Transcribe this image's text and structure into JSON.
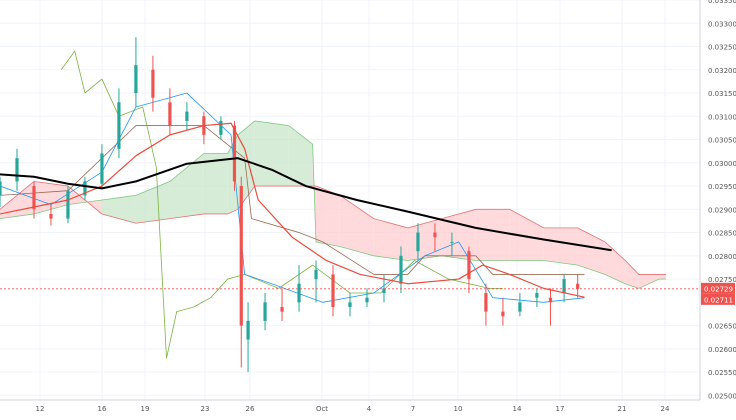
{
  "chart_data": {
    "type": "candlestick",
    "colors": {
      "up": "#26a69a",
      "down": "#ef5350",
      "ma200": "#000000",
      "ema": "#e84c3d",
      "tenkan": "#2196f3",
      "kijun": "#9c6b55",
      "chikou": "#7cb342",
      "cloud_bull": "#c8e6c9",
      "cloud_bear": "#ffcdd2",
      "grid": "#f0f3fa",
      "price_marker": "#ef5350",
      "axis_text": "#555555"
    },
    "ylim": [
      0.0249,
      0.0335
    ],
    "y_ticks": [
      "0.03350",
      "0.03300",
      "0.03250",
      "0.03200",
      "0.03150",
      "0.03100",
      "0.03050",
      "0.03000",
      "0.02950",
      "0.02900",
      "0.02850",
      "0.02800",
      "0.02750",
      "0.02650",
      "0.02600",
      "0.02550",
      "0.02500"
    ],
    "x_ticks": [
      "12",
      "16",
      "19",
      "23",
      "26",
      "Oct",
      "4",
      "7",
      "10",
      "14",
      "17",
      "21",
      "24"
    ],
    "last_price_label": "0.02729",
    "last_price": 0.02729,
    "ema_value_label": "0.02711",
    "ema_value": 0.02711,
    "series": {
      "ma200": [
        [
          0,
          0.02975
        ],
        [
          10,
          0.0297
        ],
        [
          20,
          0.02955
        ],
        [
          30,
          0.02945
        ],
        [
          40,
          0.0296
        ],
        [
          55,
          0.02998
        ],
        [
          70,
          0.0301
        ],
        [
          80,
          0.02985
        ],
        [
          90,
          0.0295
        ],
        [
          105,
          0.0292
        ],
        [
          120,
          0.02895
        ],
        [
          140,
          0.0286
        ],
        [
          160,
          0.02835
        ],
        [
          180,
          0.02812
        ]
      ],
      "ema": [
        [
          0,
          0.0289
        ],
        [
          10,
          0.02905
        ],
        [
          20,
          0.0292
        ],
        [
          30,
          0.0295
        ],
        [
          40,
          0.03015
        ],
        [
          50,
          0.0306
        ],
        [
          60,
          0.0308
        ],
        [
          68,
          0.03085
        ],
        [
          72,
          0.0303
        ],
        [
          76,
          0.0292
        ],
        [
          86,
          0.0284
        ],
        [
          96,
          0.0279
        ],
        [
          106,
          0.0276
        ],
        [
          120,
          0.0274
        ],
        [
          135,
          0.0275
        ],
        [
          142,
          0.0278
        ],
        [
          150,
          0.0276
        ],
        [
          160,
          0.0273
        ],
        [
          172,
          0.02711
        ]
      ],
      "candles": [
        [
          0,
          0.0293,
          0.0296,
          0.02905,
          0.0297
        ],
        [
          5,
          0.0296,
          0.0301,
          0.0294,
          0.0303
        ],
        [
          10,
          0.0295,
          0.029,
          0.0288,
          0.0296
        ],
        [
          15,
          0.0289,
          0.0288,
          0.02865,
          0.0291
        ],
        [
          20,
          0.0288,
          0.0294,
          0.0287,
          0.0295
        ],
        [
          25,
          0.0293,
          0.0296,
          0.0292,
          0.0297
        ],
        [
          30,
          0.02955,
          0.0302,
          0.02945,
          0.0304
        ],
        [
          35,
          0.0303,
          0.0313,
          0.0301,
          0.0316
        ],
        [
          40,
          0.0315,
          0.0321,
          0.0312,
          0.0327
        ],
        [
          45,
          0.032,
          0.0314,
          0.0311,
          0.0323
        ],
        [
          50,
          0.0313,
          0.0308,
          0.0306,
          0.0316
        ],
        [
          55,
          0.0309,
          0.0311,
          0.0307,
          0.0313
        ],
        [
          60,
          0.031,
          0.0306,
          0.0304,
          0.0311
        ],
        [
          65,
          0.0306,
          0.0309,
          0.0305,
          0.031
        ],
        [
          69,
          0.0308,
          0.0296,
          0.0294,
          0.0309
        ],
        [
          71,
          0.0295,
          0.0265,
          0.0256,
          0.0297
        ],
        [
          73,
          0.0262,
          0.0266,
          0.0255,
          0.027
        ],
        [
          78,
          0.0266,
          0.027,
          0.0264,
          0.0272
        ],
        [
          83,
          0.0269,
          0.0268,
          0.0266,
          0.0273
        ],
        [
          88,
          0.027,
          0.0274,
          0.0268,
          0.0278
        ],
        [
          93,
          0.0275,
          0.0277,
          0.027,
          0.0279
        ],
        [
          98,
          0.0276,
          0.0269,
          0.0267,
          0.0278
        ],
        [
          103,
          0.0269,
          0.027,
          0.0267,
          0.0272
        ],
        [
          108,
          0.027,
          0.0271,
          0.0269,
          0.0273
        ],
        [
          113,
          0.0272,
          0.0273,
          0.027,
          0.0276
        ],
        [
          118,
          0.0274,
          0.028,
          0.0272,
          0.0282
        ],
        [
          123,
          0.0281,
          0.0285,
          0.0279,
          0.0287
        ],
        [
          128,
          0.0285,
          0.0284,
          0.0281,
          0.0287
        ],
        [
          133,
          0.0283,
          0.0283,
          0.028,
          0.0285
        ],
        [
          138,
          0.0281,
          0.0275,
          0.0272,
          0.0282
        ],
        [
          143,
          0.0272,
          0.0268,
          0.0265,
          0.0274
        ],
        [
          148,
          0.0268,
          0.0267,
          0.0265,
          0.0271
        ],
        [
          153,
          0.0268,
          0.027,
          0.0267,
          0.0272
        ],
        [
          158,
          0.0271,
          0.0272,
          0.0269,
          0.0273
        ],
        [
          162,
          0.0271,
          0.027,
          0.0265,
          0.0273
        ],
        [
          166,
          0.0272,
          0.0275,
          0.027,
          0.0276
        ],
        [
          170,
          0.0274,
          0.02729,
          0.0271,
          0.0276
        ]
      ],
      "tenkan": [
        [
          0,
          0.0295
        ],
        [
          15,
          0.0291
        ],
        [
          30,
          0.0298
        ],
        [
          40,
          0.0312
        ],
        [
          55,
          0.0315
        ],
        [
          68,
          0.0306
        ],
        [
          72,
          0.0276
        ],
        [
          80,
          0.0274
        ],
        [
          95,
          0.027
        ],
        [
          110,
          0.0272
        ],
        [
          125,
          0.028
        ],
        [
          135,
          0.0283
        ],
        [
          145,
          0.0271
        ],
        [
          160,
          0.027
        ],
        [
          172,
          0.0271
        ]
      ],
      "kijun": [
        [
          0,
          0.0293
        ],
        [
          20,
          0.0294
        ],
        [
          40,
          0.0308
        ],
        [
          60,
          0.0308
        ],
        [
          72,
          0.0301
        ],
        [
          74,
          0.0288
        ],
        [
          88,
          0.0285
        ],
        [
          95,
          0.0283
        ],
        [
          110,
          0.0276
        ],
        [
          120,
          0.0276
        ],
        [
          125,
          0.028
        ],
        [
          140,
          0.028
        ],
        [
          145,
          0.0276
        ],
        [
          172,
          0.0276
        ]
      ],
      "chikou": [
        [
          18,
          0.032
        ],
        [
          22,
          0.0324
        ],
        [
          25,
          0.0315
        ],
        [
          30,
          0.0318
        ],
        [
          35,
          0.031
        ],
        [
          42,
          0.0312
        ],
        [
          46,
          0.0299
        ],
        [
          49,
          0.0258
        ],
        [
          52,
          0.0268
        ],
        [
          57,
          0.0269
        ],
        [
          62,
          0.0271
        ],
        [
          67,
          0.0275
        ],
        [
          72,
          0.0276
        ],
        [
          82,
          0.0273
        ],
        [
          92,
          0.0278
        ],
        [
          103,
          0.0272
        ],
        [
          112,
          0.0272
        ],
        [
          122,
          0.0279
        ],
        [
          132,
          0.0275
        ],
        [
          144,
          0.0273
        ],
        [
          148,
          0.0273
        ]
      ],
      "cloud": [
        [
          0,
          0.0288,
          0.029
        ],
        [
          10,
          0.0289,
          0.0296
        ],
        [
          20,
          0.0291,
          0.0295
        ],
        [
          30,
          0.0292,
          0.0289
        ],
        [
          40,
          0.0293,
          0.0287
        ],
        [
          50,
          0.0296,
          0.0288
        ],
        [
          60,
          0.0302,
          0.0289
        ],
        [
          67,
          0.0302,
          0.0289
        ],
        [
          70,
          0.0306,
          0.029
        ],
        [
          75,
          0.0309,
          0.0295
        ],
        [
          85,
          0.0308,
          0.0295
        ],
        [
          92,
          0.0304,
          0.0295
        ],
        [
          93,
          0.0283,
          0.0295
        ],
        [
          100,
          0.0282,
          0.0293
        ],
        [
          110,
          0.028,
          0.0288
        ],
        [
          120,
          0.0279,
          0.0286
        ],
        [
          130,
          0.028,
          0.0288
        ],
        [
          140,
          0.0279,
          0.029
        ],
        [
          150,
          0.0279,
          0.029
        ],
        [
          160,
          0.0279,
          0.0286
        ],
        [
          170,
          0.0278,
          0.0286
        ],
        [
          178,
          0.0276,
          0.0283
        ],
        [
          184,
          0.0274,
          0.0279
        ],
        [
          188,
          0.0273,
          0.0276
        ],
        [
          194,
          0.0275,
          0.0276
        ],
        [
          196,
          0.0275,
          0.0276
        ]
      ]
    }
  }
}
